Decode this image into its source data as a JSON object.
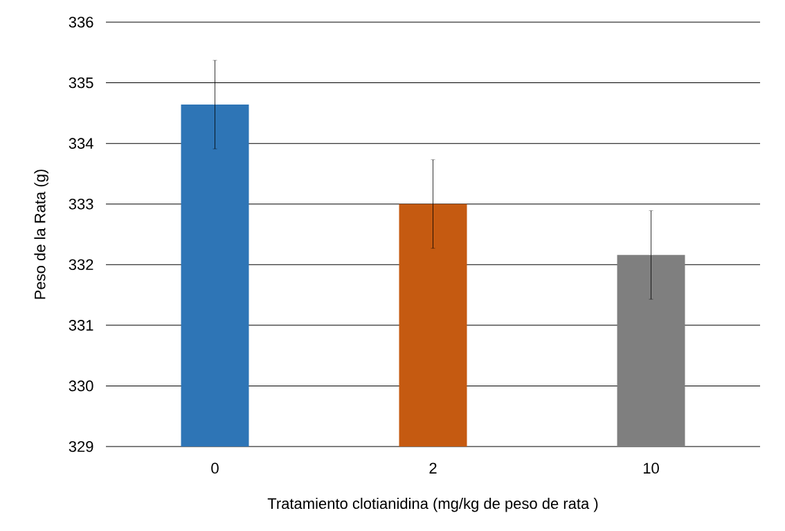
{
  "chart_data": {
    "type": "bar",
    "xlabel": "Tratamiento clotianidina (mg/kg de peso de rata )",
    "ylabel": "Peso de la Rata (g)",
    "categories": [
      "0",
      "2",
      "10"
    ],
    "values": [
      334.64,
      333.0,
      332.16
    ],
    "errors": [
      0.73,
      0.73,
      0.73
    ],
    "colors": [
      "#2e75b6",
      "#c55a11",
      "#7f7f7f"
    ],
    "ylim": [
      329,
      336
    ],
    "yticks": [
      329,
      330,
      331,
      332,
      333,
      334,
      335,
      336
    ],
    "grid": "y"
  }
}
